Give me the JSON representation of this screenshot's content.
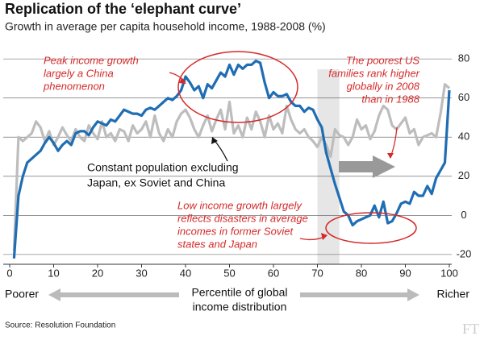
{
  "chart_data": {
    "type": "line",
    "title": "Replication of the ‘elephant curve’",
    "subtitle": "Growth in average per capita household income, 1988-2008 (%)",
    "x": [
      1,
      2,
      3,
      4,
      5,
      6,
      7,
      8,
      9,
      10,
      11,
      12,
      13,
      14,
      15,
      16,
      17,
      18,
      19,
      20,
      21,
      22,
      23,
      24,
      25,
      26,
      27,
      28,
      29,
      30,
      31,
      32,
      33,
      34,
      35,
      36,
      37,
      38,
      39,
      40,
      41,
      42,
      43,
      44,
      45,
      46,
      47,
      48,
      49,
      50,
      51,
      52,
      53,
      54,
      55,
      56,
      57,
      58,
      59,
      60,
      61,
      62,
      63,
      64,
      65,
      66,
      67,
      68,
      69,
      70,
      71,
      72,
      73,
      74,
      75,
      76,
      77,
      78,
      79,
      80,
      81,
      82,
      83,
      84,
      85,
      86,
      87,
      88,
      89,
      90,
      91,
      92,
      93,
      94,
      95,
      96,
      97,
      98,
      99,
      100
    ],
    "series": [
      {
        "color": "#bdbdbd",
        "values": [
          -18,
          40,
          38,
          40,
          42,
          48,
          45,
          38,
          43,
          36,
          40,
          45,
          41,
          38,
          44,
          40,
          38,
          46,
          42,
          39,
          48,
          40,
          42,
          38,
          44,
          43,
          38,
          46,
          42,
          44,
          48,
          40,
          51,
          42,
          38,
          44,
          40,
          48,
          52,
          54,
          50,
          44,
          40,
          46,
          51,
          43,
          49,
          54,
          44,
          58,
          42,
          46,
          40,
          50,
          44,
          53,
          48,
          40,
          51,
          44,
          47,
          42,
          56,
          49,
          44,
          42,
          44,
          40,
          38,
          35,
          40,
          36,
          30,
          44,
          41,
          40,
          36,
          40,
          49,
          44,
          46,
          39,
          43,
          51,
          56,
          54,
          46,
          44,
          47,
          50,
          42,
          44,
          36,
          40,
          41,
          42,
          40,
          52,
          67,
          65
        ]
      },
      {
        "color": "#1f6db3",
        "values": [
          -22,
          10,
          20,
          27,
          29,
          31,
          33,
          37,
          40,
          37,
          33,
          36,
          38,
          36,
          42,
          43,
          43,
          41,
          45,
          48,
          47,
          46,
          49,
          48,
          51,
          54,
          53,
          52,
          52,
          51,
          54,
          55,
          54,
          56,
          58,
          60,
          59,
          61,
          64,
          71,
          68,
          64,
          66,
          60,
          67,
          65,
          69,
          73,
          71,
          77,
          72,
          77,
          75,
          77,
          77,
          79,
          78,
          68,
          60,
          63,
          61,
          61,
          62,
          58,
          56,
          56,
          53,
          55,
          54,
          49,
          45,
          32,
          24,
          16,
          9,
          2,
          0,
          -5,
          -3,
          -2,
          -1,
          0,
          5,
          -1,
          7,
          -4,
          -3,
          1,
          6,
          7,
          6,
          12,
          10,
          10,
          15,
          11,
          19,
          23,
          27,
          64
        ]
      }
    ],
    "xlim": [
      0,
      100
    ],
    "xticks": [
      0,
      10,
      20,
      30,
      40,
      50,
      60,
      70,
      80,
      90,
      100
    ],
    "ylim": [
      -25,
      85
    ],
    "yticks": [
      -20,
      0,
      20,
      40,
      60,
      80
    ],
    "grid": true,
    "shaded_range": [
      70,
      75
    ],
    "x_label": [
      "Percentile of global",
      "income distribution"
    ],
    "x_left_label": "Poorer",
    "x_right_label": "Richer",
    "annotation_china": [
      "Peak income growth",
      "largely a China",
      "phenomenon"
    ],
    "annotation_us": [
      "The poorest US",
      "families rank higher",
      "globally in 2008",
      "than in 1988"
    ],
    "annotation_constant": [
      "Constant population excluding",
      "Japan, ex Soviet and China"
    ],
    "annotation_low": [
      "Low income growth largely",
      "reflects disasters in average",
      "incomes in former Soviet",
      "states and Japan"
    ],
    "source": "Source: Resolution Foundation",
    "logo": "FT"
  }
}
